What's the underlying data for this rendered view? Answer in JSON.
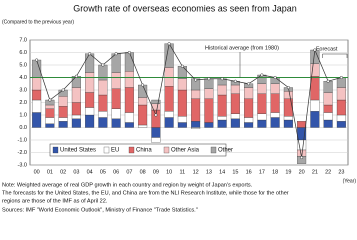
{
  "chart_data": {
    "type": "bar",
    "title": "Growth rate of overseas economies as seen from Japan",
    "subtitle": "(Compared to the previous year)",
    "x_label": "(Year)",
    "categories": [
      "00",
      "01",
      "02",
      "03",
      "04",
      "05",
      "06",
      "07",
      "08",
      "09",
      "10",
      "11",
      "12",
      "13",
      "14",
      "15",
      "16",
      "17",
      "18",
      "19",
      "20",
      "21",
      "22",
      "23"
    ],
    "series": [
      {
        "name": "United States",
        "color": "#3355aa",
        "values": [
          1.2,
          0.3,
          0.5,
          0.7,
          1.0,
          0.8,
          0.7,
          0.4,
          0.0,
          -0.8,
          0.8,
          0.4,
          0.5,
          0.4,
          0.6,
          0.7,
          0.4,
          0.6,
          0.8,
          0.6,
          -1.0,
          1.3,
          0.6,
          0.5
        ]
      },
      {
        "name": "EU",
        "color": "#ffffff",
        "values": [
          1.0,
          0.5,
          0.3,
          0.3,
          0.6,
          0.5,
          0.8,
          0.8,
          0.2,
          -0.4,
          0.5,
          0.5,
          -0.1,
          0.0,
          0.3,
          0.4,
          0.4,
          0.5,
          0.4,
          0.3,
          -0.8,
          0.9,
          0.6,
          0.5
        ]
      },
      {
        "name": "China",
        "color": "#e06666",
        "values": [
          0.8,
          0.7,
          0.9,
          1.0,
          1.2,
          1.3,
          1.6,
          2.0,
          1.6,
          1.4,
          2.0,
          2.1,
          1.8,
          1.9,
          1.7,
          1.6,
          1.5,
          1.6,
          1.5,
          1.4,
          0.5,
          1.9,
          0.6,
          1.2
        ]
      },
      {
        "name": "Other Asia",
        "color": "#f4c2c2",
        "values": [
          1.0,
          0.3,
          0.8,
          1.2,
          1.6,
          1.2,
          1.3,
          1.3,
          0.6,
          0.5,
          1.5,
          0.9,
          0.7,
          0.8,
          0.8,
          0.7,
          0.9,
          0.8,
          0.8,
          0.6,
          -0.5,
          1.0,
          1.0,
          1.0
        ]
      },
      {
        "name": "Other",
        "color": "#a6a6a6",
        "values": [
          1.4,
          0.4,
          0.5,
          0.9,
          1.5,
          1.2,
          1.5,
          1.5,
          1.0,
          0.3,
          1.9,
          1.0,
          0.9,
          0.8,
          0.5,
          0.3,
          0.3,
          0.7,
          0.5,
          0.3,
          -0.6,
          1.1,
          0.9,
          0.8
        ]
      }
    ],
    "total": [
      5.4,
      2.2,
      3.0,
      4.1,
      5.9,
      5.0,
      5.9,
      6.0,
      3.4,
      1.0,
      6.7,
      4.9,
      3.8,
      3.9,
      3.9,
      3.7,
      3.5,
      4.2,
      4.0,
      3.2,
      -2.4,
      6.2,
      3.7,
      4.0
    ],
    "historical_average": 4.0,
    "annotations": {
      "average": "Historical average (from 1980)",
      "forecast": "Forecast"
    },
    "ylim": [
      -3,
      7
    ],
    "yticks": [
      {
        "value": -3,
        "label": "-3.0"
      },
      {
        "value": -2,
        "label": "-2.0"
      },
      {
        "value": -1,
        "label": "-1.0"
      },
      {
        "value": 0,
        "label": "0.0"
      },
      {
        "value": 1,
        "label": "1.0"
      },
      {
        "value": 2,
        "label": "2.0"
      },
      {
        "value": 3,
        "label": "3.0"
      },
      {
        "value": 4,
        "label": "4.0"
      },
      {
        "value": 5,
        "label": "5.0"
      },
      {
        "value": 6,
        "label": "6.0"
      },
      {
        "value": 7,
        "label": "7.0"
      }
    ],
    "grid": true
  },
  "notes": [
    "Note: Weighted average of real GDP growth in each country and region by weight of Japan's exports.",
    "The forecasts for the United States, the EU, and China are from the NLI Research Institute, while those for the other",
    "regions are those of the IMF as of April 22.",
    "Sources: IMF \"World Economic Outlook\", Ministry of Finance \"Trade Statistics.\""
  ]
}
